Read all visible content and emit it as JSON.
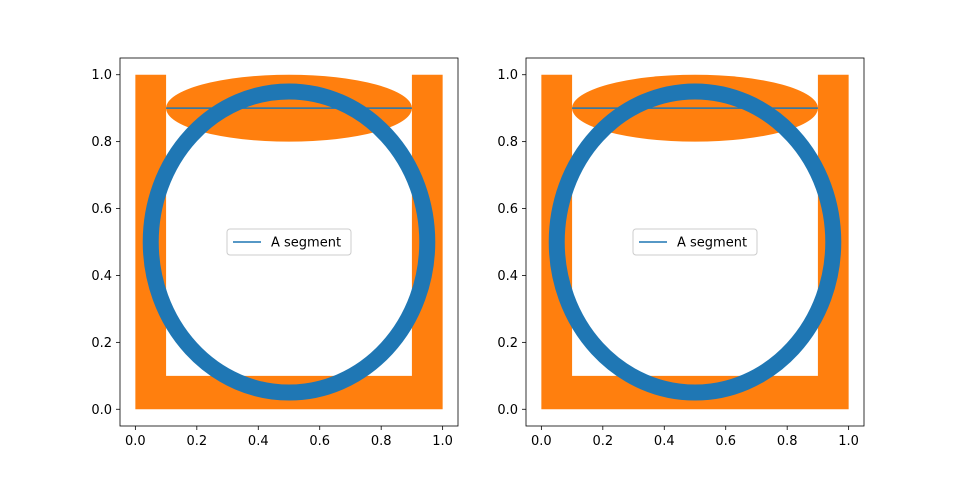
{
  "chart_data": [
    {
      "type": "line",
      "xlim": [
        -0.05,
        1.05
      ],
      "ylim": [
        -0.05,
        1.05
      ],
      "xticks": [
        "0.0",
        "0.2",
        "0.4",
        "0.6",
        "0.8",
        "1.0"
      ],
      "yticks": [
        "0.0",
        "0.2",
        "0.4",
        "0.6",
        "0.8",
        "1.0"
      ],
      "xlabel": "",
      "ylabel": "",
      "grid": false,
      "legend": {
        "location": "center",
        "entries": [
          {
            "label": "A segment",
            "color": "#1f77b4"
          }
        ]
      },
      "series": [
        {
          "name": "A segment",
          "kind": "line",
          "color": "#1f77b4",
          "x": [
            0.1,
            0.9
          ],
          "y": [
            0.9,
            0.9
          ]
        }
      ],
      "shapes": [
        {
          "kind": "u-polygon",
          "color": "#ff7f0e",
          "points": [
            [
              0,
              0
            ],
            [
              1,
              0
            ],
            [
              1,
              1
            ],
            [
              0.9,
              1
            ],
            [
              0.9,
              0.1
            ],
            [
              0.1,
              0.1
            ],
            [
              0.1,
              1
            ],
            [
              0,
              1
            ]
          ]
        },
        {
          "kind": "ellipse",
          "color": "#ff7f0e",
          "center": [
            0.5,
            0.9
          ],
          "width": 0.8,
          "height": 0.2
        },
        {
          "kind": "circle-ring",
          "color": "#1f77b4",
          "center": [
            0.5,
            0.5
          ],
          "radius": 0.45
        }
      ]
    },
    {
      "type": "line",
      "xlim": [
        -0.05,
        1.05
      ],
      "ylim": [
        -0.05,
        1.05
      ],
      "xticks": [
        "0.0",
        "0.2",
        "0.4",
        "0.6",
        "0.8",
        "1.0"
      ],
      "yticks": [
        "0.0",
        "0.2",
        "0.4",
        "0.6",
        "0.8",
        "1.0"
      ],
      "xlabel": "",
      "ylabel": "",
      "grid": false,
      "legend": {
        "location": "center",
        "entries": [
          {
            "label": "A segment",
            "color": "#1f77b4"
          }
        ]
      },
      "series": [
        {
          "name": "A segment",
          "kind": "line",
          "color": "#1f77b4",
          "x": [
            0.1,
            0.9
          ],
          "y": [
            0.9,
            0.9
          ]
        }
      ],
      "shapes": [
        {
          "kind": "u-polygon",
          "color": "#ff7f0e",
          "points": [
            [
              0,
              0
            ],
            [
              1,
              0
            ],
            [
              1,
              1
            ],
            [
              0.9,
              1
            ],
            [
              0.9,
              0.1
            ],
            [
              0.1,
              0.1
            ],
            [
              0.1,
              1
            ],
            [
              0,
              1
            ]
          ]
        },
        {
          "kind": "ellipse",
          "color": "#ff7f0e",
          "center": [
            0.5,
            0.9
          ],
          "width": 0.8,
          "height": 0.2
        },
        {
          "kind": "circle-ring",
          "color": "#1f77b4",
          "center": [
            0.5,
            0.5
          ],
          "radius": 0.45
        }
      ]
    }
  ]
}
